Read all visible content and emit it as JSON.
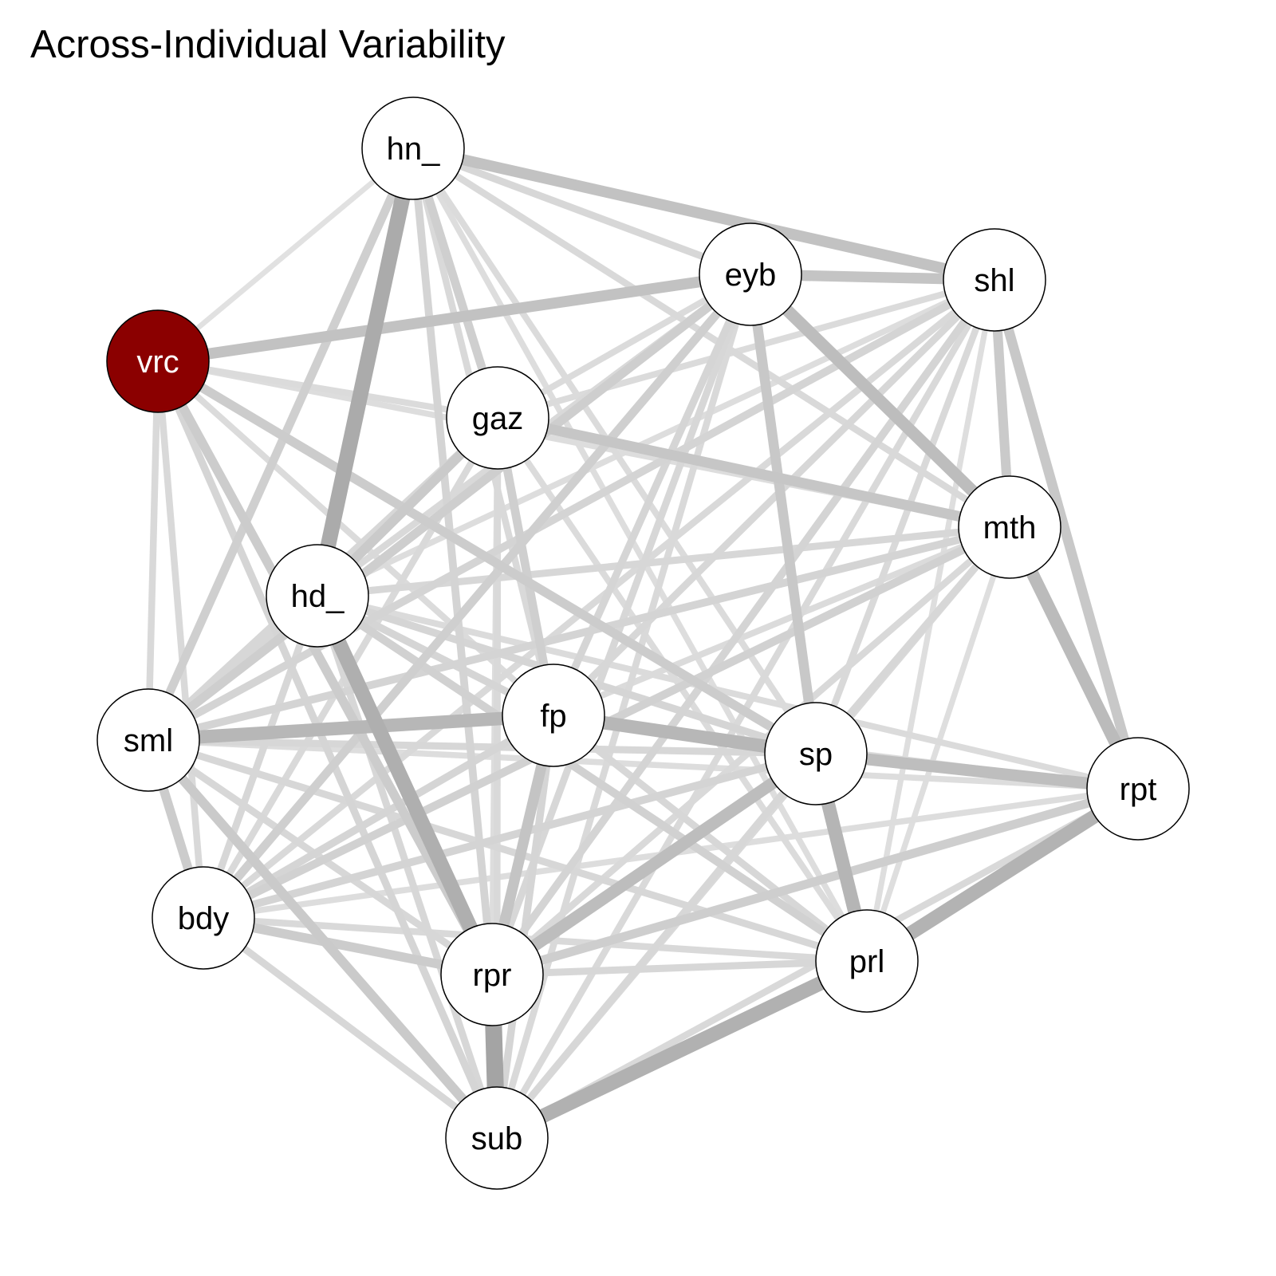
{
  "title": "Across-Individual Variability",
  "colors": {
    "background": "#ffffff",
    "node_fill": "#ffffff",
    "node_stroke": "#000000",
    "highlight_fill": "#8b0000",
    "highlight_text": "#ffffff",
    "label_text": "#000000"
  },
  "nodes": [
    {
      "id": "hn_",
      "label": "hn_"
    },
    {
      "id": "eyb",
      "label": "eyb"
    },
    {
      "id": "shl",
      "label": "shl"
    },
    {
      "id": "vrc",
      "label": "vrc",
      "highlight": true
    },
    {
      "id": "gaz",
      "label": "gaz"
    },
    {
      "id": "mth",
      "label": "mth"
    },
    {
      "id": "hd_",
      "label": "hd_"
    },
    {
      "id": "fp",
      "label": "fp"
    },
    {
      "id": "sml",
      "label": "sml"
    },
    {
      "id": "sp",
      "label": "sp"
    },
    {
      "id": "rpt",
      "label": "rpt"
    },
    {
      "id": "bdy",
      "label": "bdy"
    },
    {
      "id": "rpr",
      "label": "rpr"
    },
    {
      "id": "prl",
      "label": "prl"
    },
    {
      "id": "sub",
      "label": "sub"
    }
  ],
  "edges": [
    {
      "source": "rpr",
      "target": "sub",
      "weight": 0.95
    },
    {
      "source": "hn_",
      "target": "hd_",
      "weight": 0.85
    },
    {
      "source": "hd_",
      "target": "rpr",
      "weight": 0.8
    },
    {
      "source": "sub",
      "target": "prl",
      "weight": 0.78
    },
    {
      "source": "prl",
      "target": "rpt",
      "weight": 0.75
    },
    {
      "source": "sp",
      "target": "prl",
      "weight": 0.72
    },
    {
      "source": "sml",
      "target": "fp",
      "weight": 0.7
    },
    {
      "source": "fp",
      "target": "sp",
      "weight": 0.7
    },
    {
      "source": "mth",
      "target": "rpt",
      "weight": 0.65
    },
    {
      "source": "eyb",
      "target": "mth",
      "weight": 0.62
    },
    {
      "source": "sp",
      "target": "rpr",
      "weight": 0.62
    },
    {
      "source": "sp",
      "target": "rpt",
      "weight": 0.6
    },
    {
      "source": "vrc",
      "target": "eyb",
      "weight": 0.55
    },
    {
      "source": "hn_",
      "target": "shl",
      "weight": 0.55
    },
    {
      "source": "eyb",
      "target": "shl",
      "weight": 0.52
    },
    {
      "source": "gaz",
      "target": "mth",
      "weight": 0.5
    },
    {
      "source": "fp",
      "target": "rpr",
      "weight": 0.52
    },
    {
      "source": "eyb",
      "target": "sp",
      "weight": 0.48
    },
    {
      "source": "shl",
      "target": "rpt",
      "weight": 0.48
    },
    {
      "source": "shl",
      "target": "mth",
      "weight": 0.45
    },
    {
      "source": "gaz",
      "target": "hd_",
      "weight": 0.45
    },
    {
      "source": "vrc",
      "target": "sp",
      "weight": 0.42
    },
    {
      "source": "vrc",
      "target": "rpr",
      "weight": 0.42
    },
    {
      "source": "sml",
      "target": "sub",
      "weight": 0.45
    },
    {
      "source": "bdy",
      "target": "rpr",
      "weight": 0.42
    },
    {
      "source": "sml",
      "target": "bdy",
      "weight": 0.42
    },
    {
      "source": "rpr",
      "target": "rpt",
      "weight": 0.4
    },
    {
      "source": "sml",
      "target": "eyb",
      "weight": 0.4
    },
    {
      "source": "hn_",
      "target": "gaz",
      "weight": 0.38
    },
    {
      "source": "hn_",
      "target": "sml",
      "weight": 0.38
    },
    {
      "source": "hn_",
      "target": "rpr",
      "weight": 0.32
    },
    {
      "source": "eyb",
      "target": "bdy",
      "weight": 0.38
    },
    {
      "source": "gaz",
      "target": "fp",
      "weight": 0.38
    },
    {
      "source": "hd_",
      "target": "prl",
      "weight": 0.35
    },
    {
      "source": "bdy",
      "target": "mth",
      "weight": 0.35
    },
    {
      "source": "sml",
      "target": "mth",
      "weight": 0.32
    },
    {
      "source": "sml",
      "target": "shl",
      "weight": 0.32
    },
    {
      "source": "shl",
      "target": "rpr",
      "weight": 0.32
    },
    {
      "source": "sp",
      "target": "bdy",
      "weight": 0.32
    },
    {
      "source": "fp",
      "target": "bdy",
      "weight": 0.3
    },
    {
      "source": "sub",
      "target": "fp",
      "weight": 0.3
    },
    {
      "source": "hd_",
      "target": "sp",
      "weight": 0.3
    },
    {
      "source": "mth",
      "target": "hd_",
      "weight": 0.28
    },
    {
      "source": "vrc",
      "target": "sml",
      "weight": 0.25
    },
    {
      "source": "vrc",
      "target": "bdy",
      "weight": 0.25
    },
    {
      "source": "vrc",
      "target": "sub",
      "weight": 0.3
    },
    {
      "source": "vrc",
      "target": "gaz",
      "weight": 0.22
    },
    {
      "source": "vrc",
      "target": "mth",
      "weight": 0.2
    },
    {
      "source": "vrc",
      "target": "fp",
      "weight": 0.22
    },
    {
      "source": "vrc",
      "target": "hn_",
      "weight": 0.15
    },
    {
      "source": "hn_",
      "target": "eyb",
      "weight": 0.28
    },
    {
      "source": "hn_",
      "target": "mth",
      "weight": 0.25
    },
    {
      "source": "hn_",
      "target": "sp",
      "weight": 0.22
    },
    {
      "source": "hn_",
      "target": "fp",
      "weight": 0.25
    },
    {
      "source": "hn_",
      "target": "prl",
      "weight": 0.2
    },
    {
      "source": "eyb",
      "target": "fp",
      "weight": 0.3
    },
    {
      "source": "eyb",
      "target": "rpr",
      "weight": 0.28
    },
    {
      "source": "eyb",
      "target": "sub",
      "weight": 0.25
    },
    {
      "source": "eyb",
      "target": "gaz",
      "weight": 0.22
    },
    {
      "source": "eyb",
      "target": "hd_",
      "weight": 0.25
    },
    {
      "source": "shl",
      "target": "fp",
      "weight": 0.28
    },
    {
      "source": "shl",
      "target": "sp",
      "weight": 0.25
    },
    {
      "source": "shl",
      "target": "bdy",
      "weight": 0.25
    },
    {
      "source": "shl",
      "target": "gaz",
      "weight": 0.22
    },
    {
      "source": "shl",
      "target": "sub",
      "weight": 0.25
    },
    {
      "source": "shl",
      "target": "prl",
      "weight": 0.18
    },
    {
      "source": "shl",
      "target": "hd_",
      "weight": 0.2
    },
    {
      "source": "gaz",
      "target": "sml",
      "weight": 0.28
    },
    {
      "source": "gaz",
      "target": "sub",
      "weight": 0.25
    },
    {
      "source": "gaz",
      "target": "bdy",
      "weight": 0.25
    },
    {
      "source": "gaz",
      "target": "prl",
      "weight": 0.22
    },
    {
      "source": "gaz",
      "target": "rpr",
      "weight": 0.2
    },
    {
      "source": "mth",
      "target": "sp",
      "weight": 0.28
    },
    {
      "source": "mth",
      "target": "rpr",
      "weight": 0.25
    },
    {
      "source": "mth",
      "target": "fp",
      "weight": 0.22
    },
    {
      "source": "mth",
      "target": "prl",
      "weight": 0.18
    },
    {
      "source": "mth",
      "target": "sub",
      "weight": 0.25
    },
    {
      "source": "hd_",
      "target": "fp",
      "weight": 0.3
    },
    {
      "source": "hd_",
      "target": "sml",
      "weight": 0.28
    },
    {
      "source": "hd_",
      "target": "bdy",
      "weight": 0.28
    },
    {
      "source": "hd_",
      "target": "sub",
      "weight": 0.28
    },
    {
      "source": "hd_",
      "target": "rpt",
      "weight": 0.22
    },
    {
      "source": "fp",
      "target": "prl",
      "weight": 0.28
    },
    {
      "source": "fp",
      "target": "rpt",
      "weight": 0.22
    },
    {
      "source": "sml",
      "target": "sp",
      "weight": 0.28
    },
    {
      "source": "sml",
      "target": "rpr",
      "weight": 0.28
    },
    {
      "source": "sml",
      "target": "prl",
      "weight": 0.28
    },
    {
      "source": "sml",
      "target": "rpt",
      "weight": 0.2
    },
    {
      "source": "sp",
      "target": "sub",
      "weight": 0.28
    },
    {
      "source": "rpt",
      "target": "bdy",
      "weight": 0.2
    },
    {
      "source": "rpt",
      "target": "sub",
      "weight": 0.25
    },
    {
      "source": "bdy",
      "target": "prl",
      "weight": 0.25
    },
    {
      "source": "bdy",
      "target": "sub",
      "weight": 0.28
    },
    {
      "source": "rpr",
      "target": "prl",
      "weight": 0.28
    }
  ]
}
